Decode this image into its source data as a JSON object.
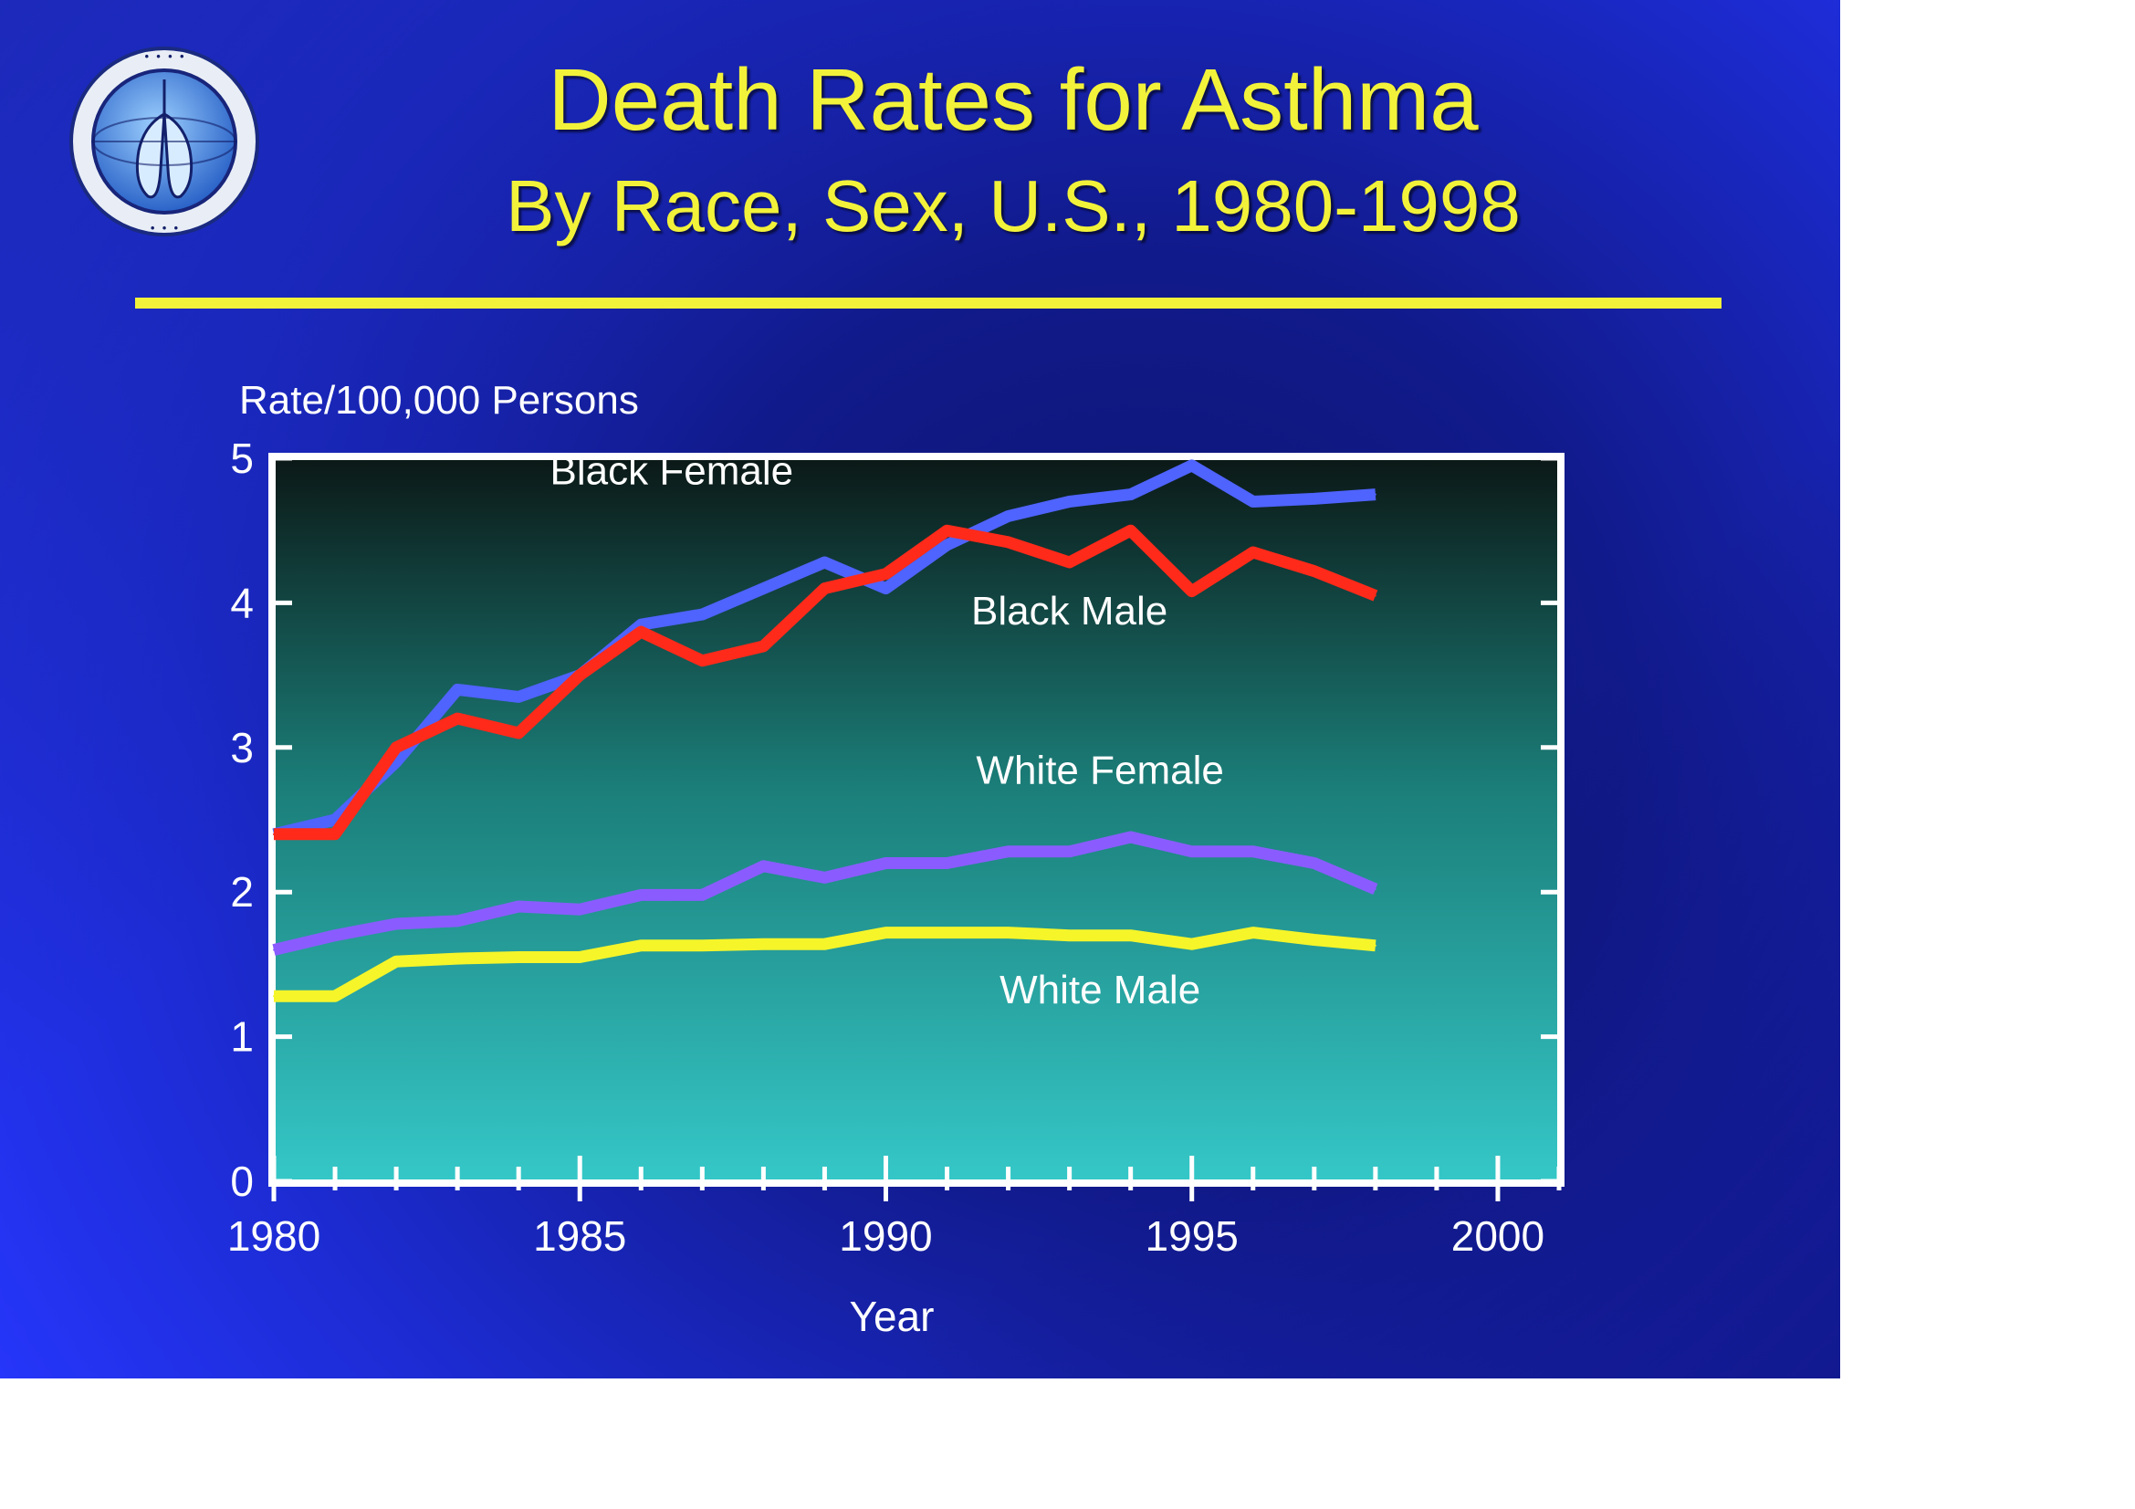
{
  "slide": {
    "title": "Death Rates for Asthma",
    "subtitle": "By Race, Sex, U.S., 1980-1998"
  },
  "chart_data": {
    "type": "line",
    "ylabel": "Rate/100,000 Persons",
    "xlabel": "Year",
    "xlim": [
      1980,
      2001
    ],
    "ylim": [
      0,
      5
    ],
    "x_ticks": [
      1980,
      1985,
      1990,
      1995,
      2000
    ],
    "y_ticks": [
      0,
      1,
      2,
      3,
      4,
      5
    ],
    "x": [
      1980,
      1981,
      1982,
      1983,
      1984,
      1985,
      1986,
      1987,
      1988,
      1989,
      1990,
      1991,
      1992,
      1993,
      1994,
      1995,
      1996,
      1997,
      1998
    ],
    "series": [
      {
        "name": "Black Female",
        "color": "#4f63ff",
        "values": [
          2.4,
          2.5,
          2.9,
          3.4,
          3.35,
          3.5,
          3.85,
          3.92,
          4.1,
          4.28,
          4.1,
          4.4,
          4.6,
          4.7,
          4.75,
          4.95,
          4.7,
          4.72,
          4.75
        ],
        "label_at": [
          1986.5,
          4.82
        ]
      },
      {
        "name": "Black Male",
        "color": "#ff2a1a",
        "values": [
          2.4,
          2.4,
          3.0,
          3.2,
          3.1,
          3.5,
          3.8,
          3.6,
          3.7,
          4.1,
          4.2,
          4.5,
          4.42,
          4.28,
          4.5,
          4.08,
          4.35,
          4.22,
          4.05
        ],
        "label_at": [
          1993.0,
          3.85
        ]
      },
      {
        "name": "White Female",
        "color": "#8a5cff",
        "values": [
          1.6,
          1.7,
          1.78,
          1.8,
          1.9,
          1.88,
          1.98,
          1.98,
          2.18,
          2.1,
          2.2,
          2.2,
          2.28,
          2.28,
          2.38,
          2.28,
          2.28,
          2.2,
          2.02
        ],
        "label_at": [
          1993.5,
          2.75
        ]
      },
      {
        "name": "White Male",
        "color": "#f5f52a",
        "values": [
          1.28,
          1.28,
          1.52,
          1.54,
          1.55,
          1.55,
          1.63,
          1.63,
          1.64,
          1.64,
          1.72,
          1.72,
          1.72,
          1.7,
          1.7,
          1.64,
          1.72,
          1.67,
          1.63
        ],
        "label_at": [
          1993.5,
          1.23
        ]
      }
    ],
    "grid": false,
    "legend": "inline labels"
  }
}
